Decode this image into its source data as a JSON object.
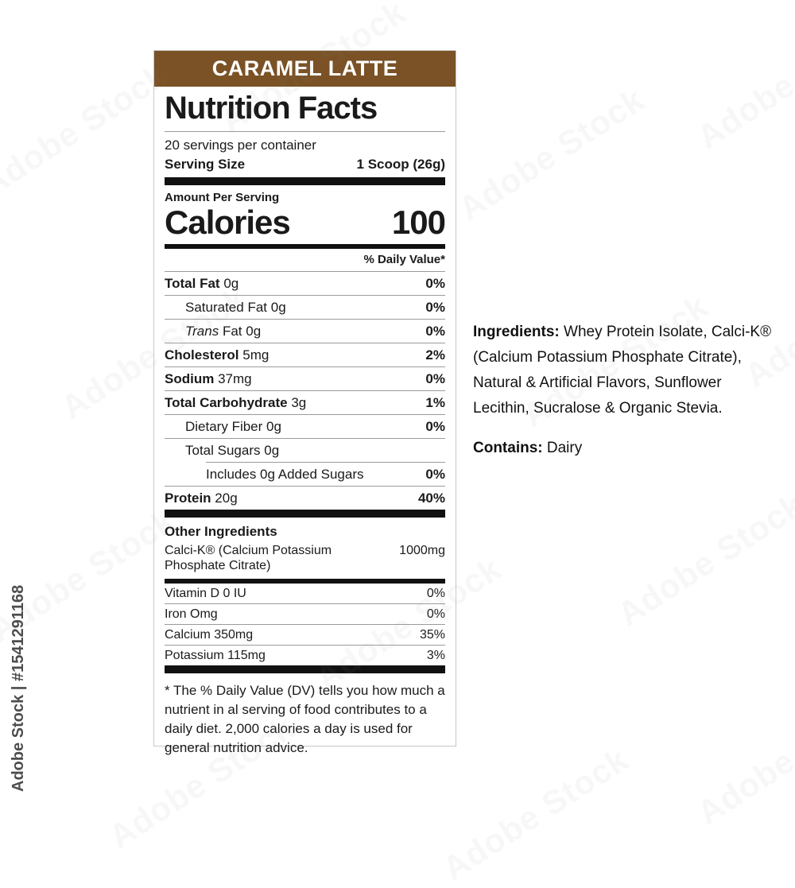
{
  "watermark": {
    "text": "Adobe Stock",
    "id_text": "Adobe Stock | #1541291168"
  },
  "label": {
    "flavor": "CARAMEL LATTE",
    "flavor_bg_color": "#7a5226",
    "title": "Nutrition Facts",
    "servings_per_container": "20 servings per container",
    "serving_size_label": "Serving Size",
    "serving_size_value": "1 Scoop (26g)",
    "amount_per_serving": "Amount Per Serving",
    "calories_label": "Calories",
    "calories_value": "100",
    "daily_value_header": "% Daily Value*",
    "rows": [
      {
        "name": "Total Fat",
        "amount": "0g",
        "dv": "0%"
      },
      {
        "name": "Saturated Fat",
        "amount": "0g",
        "dv": "0%"
      },
      {
        "name_italic": "Trans",
        "name": "Fat",
        "amount": "0g",
        "dv": "0%"
      },
      {
        "name": "Cholesterol",
        "amount": "5mg",
        "dv": "2%"
      },
      {
        "name": "Sodium",
        "amount": "37mg",
        "dv": "0%"
      },
      {
        "name": "Total Carbohydrate",
        "amount": "3g",
        "dv": "1%"
      },
      {
        "name": "Dietary Fiber",
        "amount": "0g",
        "dv": "0%"
      },
      {
        "name": "Total Sugars",
        "amount": "0g",
        "dv": ""
      },
      {
        "name": "Includes 0g Added Sugars",
        "amount": "",
        "dv": "0%"
      },
      {
        "name": "Protein",
        "amount": "20g",
        "dv": "40%"
      }
    ],
    "other_ingredients_heading": "Other Ingredients",
    "calci_k": {
      "name": "Calci-K® (Calcium Potassium Phosphate Citrate)",
      "amount": "1000mg"
    },
    "micros": [
      {
        "name": "Vitamin D 0 IU",
        "dv": "0%"
      },
      {
        "name": "Iron Omg",
        "dv": "0%"
      },
      {
        "name": "Calcium 350mg",
        "dv": "35%"
      },
      {
        "name": "Potassium 115mg",
        "dv": "3%"
      }
    ],
    "footnote": "* The % Daily Value (DV) tells you how much a nutrient in al serving of food contributes to a daily diet. 2,000 calories a day is used for general nutrition advice."
  },
  "side_text": {
    "ingredients_label": "Ingredients:",
    "ingredients_text": " Whey Protein Isolate, Calci-K® (Calcium Potassium Phosphate Citrate), Natural & Artificial Flavors, Sunflower Lecithin, Sucralose & Organic Stevia.",
    "contains_label": "Contains:",
    "contains_text": " Dairy"
  }
}
